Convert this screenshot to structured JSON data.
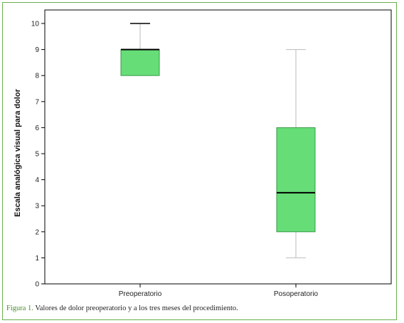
{
  "chart_data": {
    "type": "box",
    "ylabel": "Escala analógica visual para dolor",
    "xlabel": "",
    "ylim": [
      0,
      10
    ],
    "yticks": [
      "0",
      "1",
      "2",
      "3",
      "4",
      "5",
      "6",
      "7",
      "8",
      "9",
      "10"
    ],
    "categories": [
      "Preoperatorio",
      "Posoperatorio"
    ],
    "boxes": [
      {
        "category": "Preoperatorio",
        "min": 8,
        "q1": 8,
        "median": 9,
        "q3": 9,
        "max": 10
      },
      {
        "category": "Posoperatorio",
        "min": 1,
        "q1": 2,
        "median": 3.5,
        "q3": 6,
        "max": 9
      }
    ],
    "grid": false,
    "colors": {
      "box_fill": "#66dd77",
      "box_edge": "#3a9a4a",
      "median": "#000000",
      "whisker": "#bbbbbb",
      "frame": "#6ab04c"
    }
  },
  "caption": {
    "label": "Figura 1.",
    "text": " Valores de dolor preoperatorio y a los tres meses del procedimiento."
  }
}
